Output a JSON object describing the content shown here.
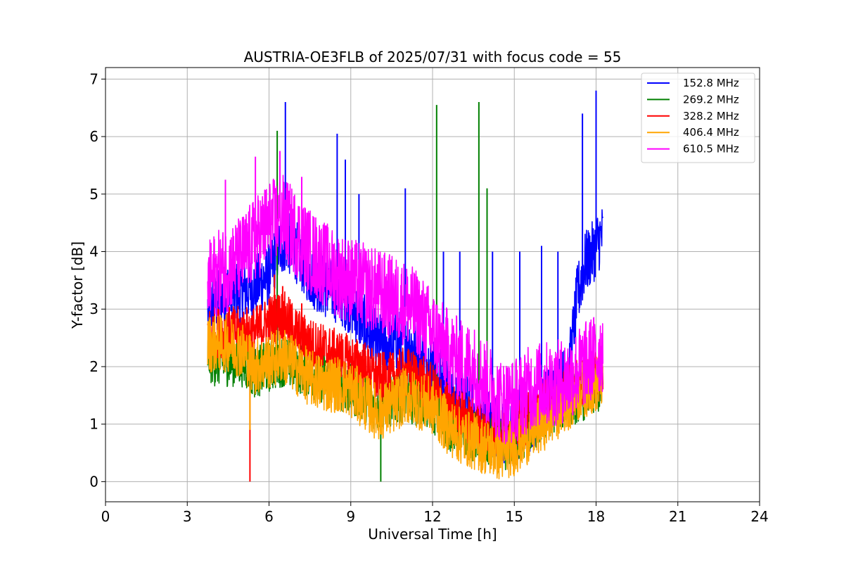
{
  "chart_data": {
    "type": "line",
    "title": "AUSTRIA-OE3FLB of 2025/07/31 with focus code = 55",
    "xlabel": "Universal Time [h]",
    "ylabel": "Y-factor [dB]",
    "xlim": [
      0,
      24
    ],
    "ylim": [
      -0.35,
      7.2
    ],
    "xticks": [
      0,
      3,
      6,
      9,
      12,
      15,
      18,
      21,
      24
    ],
    "yticks": [
      0,
      1,
      2,
      3,
      4,
      5,
      6,
      7
    ],
    "grid": true,
    "legend_position": "top-right",
    "series": [
      {
        "name": "152.8 MHz",
        "color": "#0000ff",
        "x": [
          3.75,
          4.0,
          4.5,
          5.0,
          5.5,
          6.0,
          6.3,
          6.6,
          7.0,
          7.5,
          8.0,
          8.5,
          9.0,
          9.5,
          10.0,
          10.5,
          11.0,
          11.5,
          12.0,
          12.5,
          13.0,
          13.5,
          14.0,
          14.5,
          15.0,
          15.5,
          16.0,
          16.5,
          17.0,
          17.3,
          17.6,
          17.9,
          18.1,
          18.25
        ],
        "y": [
          3.0,
          3.1,
          3.3,
          3.3,
          3.4,
          3.6,
          4.0,
          4.2,
          4.0,
          3.6,
          3.4,
          3.3,
          3.1,
          2.7,
          2.4,
          2.4,
          2.5,
          2.2,
          2.0,
          1.6,
          1.5,
          1.2,
          1.1,
          0.9,
          0.8,
          1.0,
          1.3,
          1.6,
          1.9,
          3.2,
          3.8,
          4.0,
          4.2,
          4.3
        ],
        "spikes": [
          [
            6.6,
            6.6
          ],
          [
            8.5,
            6.05
          ],
          [
            8.8,
            5.6
          ],
          [
            9.3,
            5.0
          ],
          [
            11.0,
            5.1
          ],
          [
            12.4,
            4.0
          ],
          [
            13.0,
            4.0
          ],
          [
            14.2,
            4.0
          ],
          [
            15.2,
            4.0
          ],
          [
            16.0,
            4.1
          ],
          [
            16.6,
            4.0
          ],
          [
            17.5,
            6.4
          ],
          [
            18.0,
            6.8
          ]
        ]
      },
      {
        "name": "269.2 MHz",
        "color": "#008000",
        "x": [
          3.75,
          4.0,
          4.5,
          5.0,
          5.5,
          6.0,
          6.5,
          7.0,
          7.5,
          8.0,
          8.5,
          9.0,
          9.5,
          10.0,
          10.5,
          11.0,
          11.5,
          12.0,
          12.5,
          13.0,
          13.5,
          14.0,
          14.5,
          15.0,
          15.5,
          16.0,
          16.5,
          17.0,
          17.5,
          18.0,
          18.25
        ],
        "y": [
          2.2,
          2.1,
          2.1,
          2.1,
          1.9,
          2.0,
          2.1,
          2.0,
          1.9,
          1.8,
          1.7,
          1.6,
          1.5,
          1.3,
          1.4,
          1.5,
          1.4,
          1.3,
          1.0,
          0.9,
          0.8,
          0.7,
          0.6,
          0.7,
          0.9,
          1.1,
          1.3,
          1.4,
          1.5,
          1.6,
          1.7
        ],
        "spikes": [
          [
            6.3,
            6.1
          ],
          [
            10.1,
            0.0
          ],
          [
            12.15,
            6.55
          ],
          [
            13.7,
            6.6
          ],
          [
            14.0,
            5.1
          ]
        ]
      },
      {
        "name": "328.2 MHz",
        "color": "#ff0000",
        "x": [
          3.75,
          4.0,
          4.5,
          5.0,
          5.5,
          6.0,
          6.5,
          7.0,
          7.5,
          8.0,
          8.5,
          9.0,
          9.5,
          10.0,
          10.5,
          11.0,
          11.5,
          12.0,
          12.5,
          13.0,
          13.5,
          14.0,
          14.5,
          15.0,
          15.5,
          16.0,
          16.5,
          17.0,
          17.5,
          18.0,
          18.25
        ],
        "y": [
          2.6,
          2.6,
          2.6,
          2.6,
          2.6,
          2.8,
          2.9,
          2.6,
          2.4,
          2.3,
          2.2,
          2.1,
          2.0,
          1.8,
          1.8,
          1.9,
          1.8,
          1.6,
          1.3,
          1.2,
          1.0,
          0.9,
          0.8,
          0.9,
          1.1,
          1.3,
          1.5,
          1.6,
          1.7,
          1.8,
          1.9
        ],
        "spikes": [
          [
            5.3,
            0.0
          ],
          [
            6.2,
            3.6
          ],
          [
            6.5,
            3.4
          ],
          [
            7.2,
            3.1
          ]
        ]
      },
      {
        "name": "406.4 MHz",
        "color": "#ffa500",
        "x": [
          3.75,
          4.0,
          4.5,
          5.0,
          5.3,
          5.5,
          6.0,
          6.5,
          7.0,
          7.5,
          8.0,
          8.5,
          9.0,
          9.5,
          10.0,
          10.5,
          11.0,
          11.5,
          12.0,
          12.5,
          13.0,
          13.5,
          14.0,
          14.5,
          15.0,
          15.5,
          16.0,
          16.5,
          17.0,
          17.5,
          18.0,
          18.25
        ],
        "y": [
          2.4,
          2.4,
          2.4,
          2.3,
          2.1,
          2.0,
          2.1,
          2.2,
          2.0,
          1.8,
          1.7,
          1.7,
          1.6,
          1.4,
          1.2,
          1.3,
          1.5,
          1.4,
          1.3,
          1.0,
          0.8,
          0.7,
          0.6,
          0.5,
          0.6,
          0.8,
          1.0,
          1.2,
          1.4,
          1.6,
          1.7,
          1.8
        ],
        "spikes": [
          [
            5.3,
            0.9
          ]
        ]
      },
      {
        "name": "610.5 MHz",
        "color": "#ff00ff",
        "x": [
          3.75,
          4.0,
          4.5,
          5.0,
          5.5,
          6.0,
          6.5,
          7.0,
          7.5,
          8.0,
          8.5,
          9.0,
          9.5,
          10.0,
          10.5,
          11.0,
          11.5,
          12.0,
          12.5,
          13.0,
          13.5,
          14.0,
          14.5,
          15.0,
          15.5,
          16.0,
          16.5,
          17.0,
          17.5,
          18.0,
          18.25
        ],
        "y": [
          3.4,
          3.6,
          3.7,
          3.9,
          4.2,
          4.5,
          4.6,
          4.3,
          4.0,
          3.8,
          3.6,
          3.5,
          3.4,
          3.3,
          3.2,
          3.1,
          2.9,
          2.6,
          2.3,
          2.1,
          2.0,
          1.7,
          1.4,
          1.4,
          1.6,
          1.7,
          1.7,
          1.8,
          2.0,
          2.2,
          2.3
        ],
        "spikes": [
          [
            4.4,
            5.25
          ],
          [
            5.5,
            5.65
          ],
          [
            6.4,
            5.75
          ],
          [
            7.2,
            5.3
          ]
        ]
      }
    ]
  }
}
